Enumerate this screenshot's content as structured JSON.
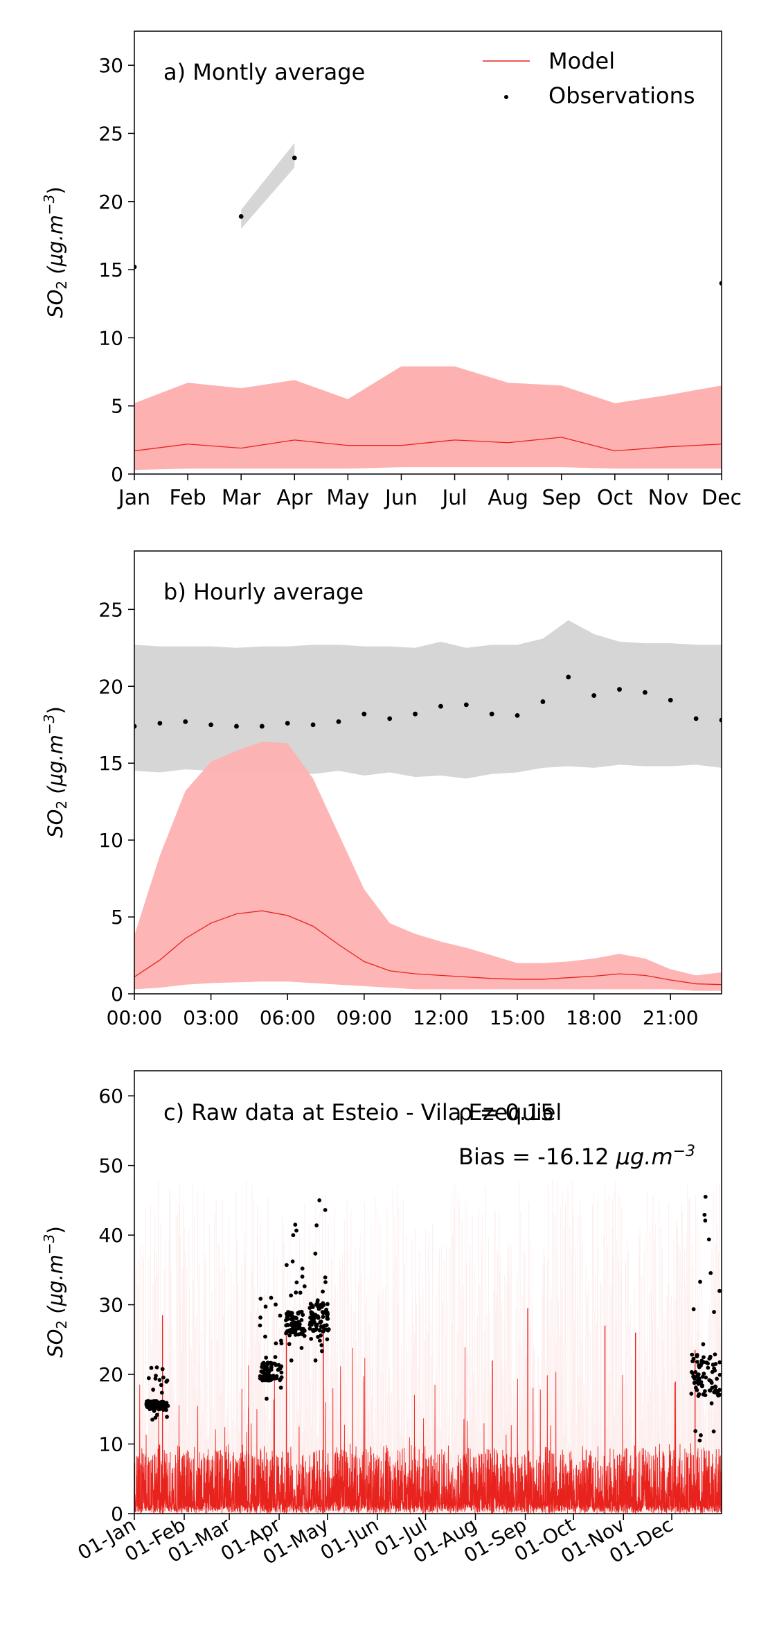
{
  "chart_data": [
    {
      "type": "line",
      "panel_label": "a) Montly average",
      "ylabel": "SO2 (μg.m−3)",
      "categories": [
        "Jan",
        "Feb",
        "Mar",
        "Apr",
        "May",
        "Jun",
        "Jul",
        "Aug",
        "Sep",
        "Oct",
        "Nov",
        "Dec"
      ],
      "ylim": [
        0,
        32.5
      ],
      "yticks": [
        0,
        5,
        10,
        15,
        20,
        25,
        30
      ],
      "legend": {
        "placement": "top-right",
        "entries": [
          "Model",
          "Observations"
        ]
      },
      "series": [
        {
          "name": "Model",
          "kind": "line",
          "color": "#e8231e",
          "values": [
            1.7,
            2.2,
            1.9,
            2.5,
            2.1,
            2.1,
            2.5,
            2.3,
            2.7,
            1.7,
            2.0,
            2.2
          ]
        },
        {
          "name": "Model range",
          "kind": "band",
          "color": "#fdb1b1",
          "lower": [
            0.3,
            0.4,
            0.4,
            0.4,
            0.4,
            0.5,
            0.5,
            0.5,
            0.5,
            0.4,
            0.4,
            0.4
          ],
          "upper": [
            5.2,
            6.7,
            6.3,
            6.9,
            5.5,
            7.9,
            7.9,
            6.7,
            6.5,
            5.2,
            5.8,
            6.5
          ]
        },
        {
          "name": "Observations",
          "kind": "points",
          "color": "#000000",
          "values": [
            15.2,
            null,
            18.9,
            23.2,
            null,
            null,
            null,
            null,
            null,
            null,
            null,
            14.0
          ]
        },
        {
          "name": "Observation range",
          "kind": "band",
          "color": "#d6d6d6",
          "x_index": [
            2,
            3
          ],
          "lower": [
            18.0,
            22.5
          ],
          "upper": [
            19.4,
            24.3
          ]
        }
      ]
    },
    {
      "type": "line",
      "panel_label": "b) Hourly average",
      "ylabel": "SO2 (μg.m−3)",
      "x_hours": [
        0,
        1,
        2,
        3,
        4,
        5,
        6,
        7,
        8,
        9,
        10,
        11,
        12,
        13,
        14,
        15,
        16,
        17,
        18,
        19,
        20,
        21,
        22,
        23
      ],
      "xtick_labels": [
        "00:00",
        "03:00",
        "06:00",
        "09:00",
        "12:00",
        "15:00",
        "18:00",
        "21:00"
      ],
      "ylim": [
        0,
        28.8
      ],
      "yticks": [
        0,
        5,
        10,
        15,
        20,
        25
      ],
      "series": [
        {
          "name": "Model",
          "kind": "line",
          "color": "#e8231e",
          "values": [
            1.1,
            2.2,
            3.6,
            4.6,
            5.2,
            5.4,
            5.1,
            4.4,
            3.2,
            2.1,
            1.5,
            1.3,
            1.2,
            1.1,
            1.0,
            0.95,
            0.95,
            1.05,
            1.15,
            1.3,
            1.2,
            0.9,
            0.65,
            0.6
          ]
        },
        {
          "name": "Model range",
          "kind": "band",
          "color": "#fdb1b1",
          "lower": [
            0.3,
            0.4,
            0.6,
            0.7,
            0.75,
            0.8,
            0.8,
            0.7,
            0.6,
            0.5,
            0.4,
            0.3,
            0.3,
            0.3,
            0.3,
            0.3,
            0.3,
            0.3,
            0.3,
            0.3,
            0.3,
            0.3,
            0.2,
            0.2
          ],
          "upper": [
            3.8,
            9.0,
            13.2,
            15.1,
            15.8,
            16.4,
            16.3,
            14.0,
            10.4,
            6.8,
            4.6,
            3.9,
            3.4,
            3.0,
            2.5,
            2.0,
            2.0,
            2.1,
            2.3,
            2.6,
            2.3,
            1.6,
            1.2,
            1.4
          ]
        },
        {
          "name": "Observations",
          "kind": "points",
          "color": "#000000",
          "values": [
            17.4,
            17.6,
            17.7,
            17.5,
            17.4,
            17.4,
            17.6,
            17.5,
            17.7,
            18.2,
            17.9,
            18.2,
            18.7,
            18.8,
            18.2,
            18.1,
            19.0,
            20.6,
            19.4,
            19.8,
            19.6,
            19.1,
            17.9,
            17.8
          ]
        },
        {
          "name": "Observation range",
          "kind": "band",
          "color": "#d6d6d6",
          "lower": [
            14.5,
            14.4,
            14.6,
            14.5,
            14.4,
            14.4,
            14.3,
            14.3,
            14.5,
            14.2,
            14.4,
            14.1,
            14.2,
            14.0,
            14.3,
            14.4,
            14.7,
            14.8,
            14.7,
            14.9,
            14.8,
            14.8,
            14.9,
            14.7
          ],
          "upper": [
            22.7,
            22.6,
            22.6,
            22.6,
            22.5,
            22.6,
            22.6,
            22.7,
            22.7,
            22.6,
            22.6,
            22.5,
            22.9,
            22.5,
            22.7,
            22.7,
            23.1,
            24.3,
            23.4,
            22.9,
            22.8,
            22.8,
            22.7,
            22.7
          ]
        }
      ]
    },
    {
      "type": "line",
      "panel_label": "c) Raw data at Esteio - Vila Ezequiel",
      "annotations": [
        "ρ = 0.15",
        "Bias = -16.12 μg.m−3"
      ],
      "ylabel": "SO2 (μg.m−3)",
      "xtick_labels": [
        "01-Jan",
        "01-Feb",
        "01-Mar",
        "01-Apr",
        "01-May",
        "01-Jun",
        "01-Jul",
        "01-Aug",
        "01-Sep",
        "01-Oct",
        "01-Nov",
        "01-Dec"
      ],
      "ylim": [
        0,
        63.6
      ],
      "yticks": [
        0,
        10,
        20,
        30,
        40,
        50,
        60
      ],
      "series": [
        {
          "name": "Model",
          "kind": "line",
          "color": "#e8231e",
          "note": "hourly series, typically 0–8, frequent spikes up to ~30",
          "peaks": [
            {
              "date": "2019-01-18",
              "value": 28.5
            },
            {
              "date": "2019-04-05",
              "value": 25.5
            },
            {
              "date": "2019-04-28",
              "value": 26.0
            },
            {
              "date": "2019-09-02",
              "value": 29.5
            },
            {
              "date": "2019-08-11",
              "value": 22.0
            },
            {
              "date": "2019-10-20",
              "value": 27.0
            },
            {
              "date": "2019-11-08",
              "value": 26.0
            },
            {
              "date": "2019-12-15",
              "value": 23.5
            }
          ]
        },
        {
          "name": "Observations",
          "kind": "points",
          "color": "#000000",
          "clusters": [
            {
              "start": "2019-01-08",
              "end": "2019-01-22",
              "low": 13.5,
              "high": 21.0
            },
            {
              "start": "2019-03-20",
              "end": "2019-04-03",
              "low": 16.5,
              "high": 31.0
            },
            {
              "start": "2019-04-05",
              "end": "2019-04-17",
              "low": 22.0,
              "high": 41.5
            },
            {
              "start": "2019-04-20",
              "end": "2019-05-02",
              "low": 22.0,
              "high": 45.0
            },
            {
              "start": "2019-12-13",
              "end": "2019-12-31",
              "low": 10.5,
              "high": 45.5
            }
          ]
        }
      ]
    }
  ]
}
